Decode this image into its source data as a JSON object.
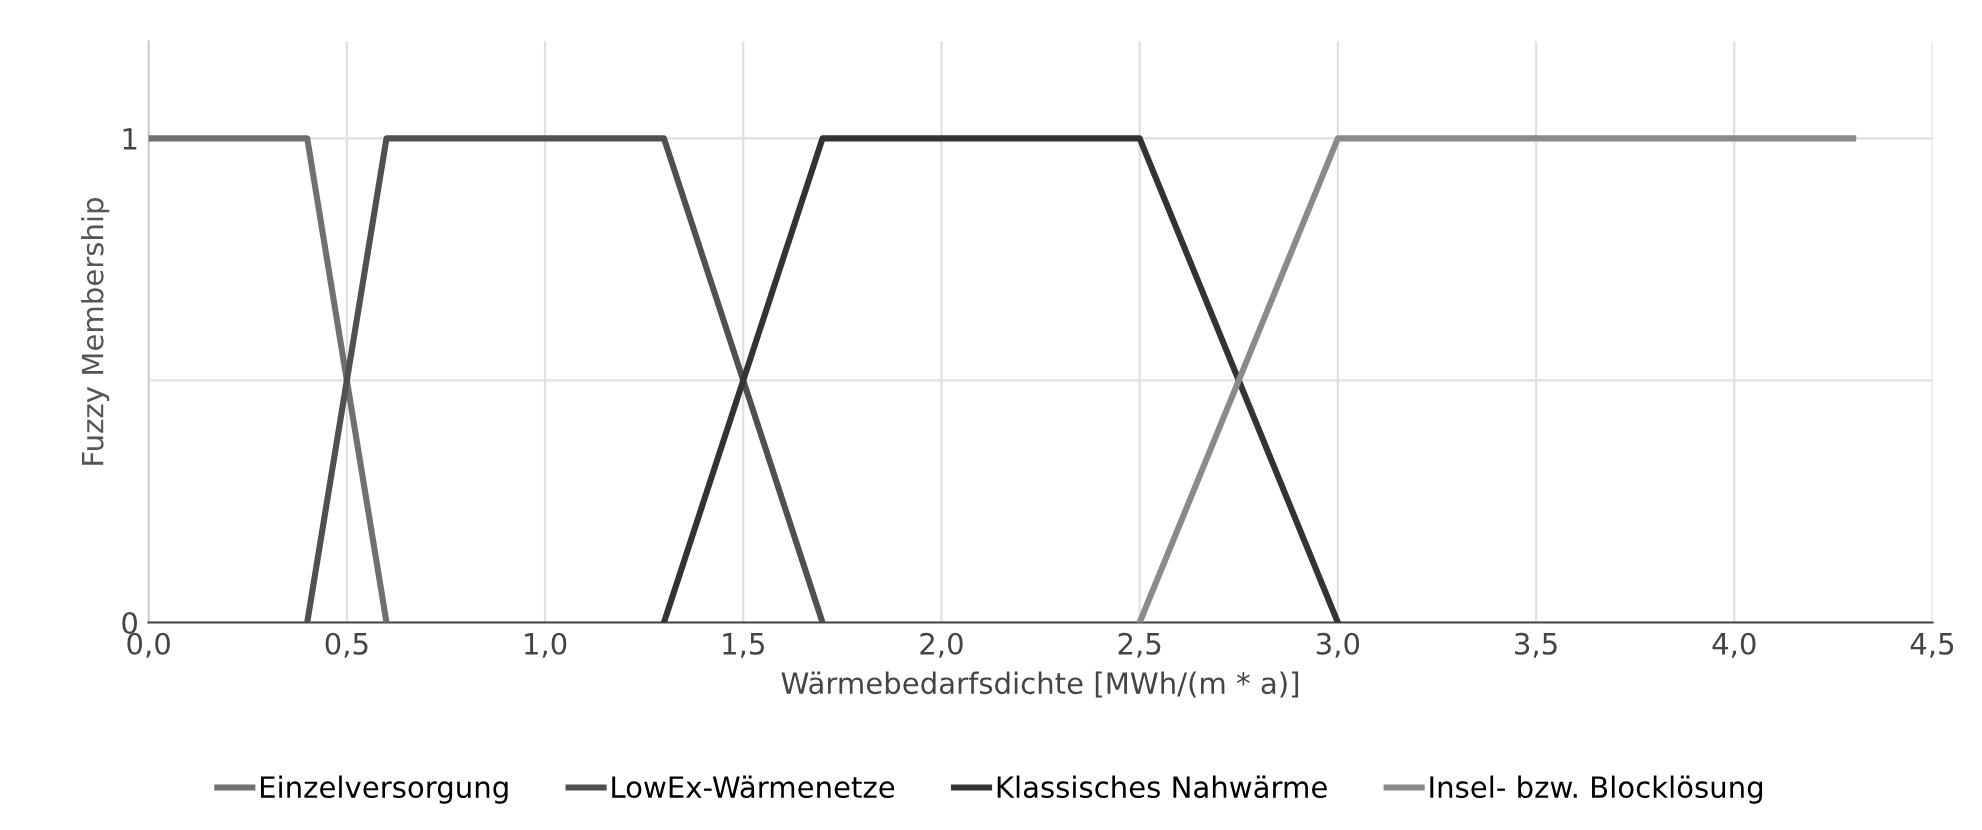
{
  "chart_data": {
    "type": "line",
    "xlabel": "Wärmebedarfsdichte [MWh/(m * a)]",
    "ylabel": "Fuzzy Membership",
    "series": [
      {
        "name": "Einzelversorgung",
        "color": "#707070",
        "x": [
          0,
          0.4,
          0.6
        ],
        "values": [
          1,
          1,
          0
        ]
      },
      {
        "name": "LowEx-Wärmenetze",
        "color": "#505050",
        "x": [
          0.4,
          0.6,
          1.3,
          1.7
        ],
        "values": [
          0,
          1,
          1,
          0
        ]
      },
      {
        "name": "Klassisches Nahwärme",
        "color": "#333333",
        "x": [
          1.3,
          1.7,
          2.5,
          3.0
        ],
        "values": [
          0,
          1,
          1,
          0
        ]
      },
      {
        "name": "Insel- bzw. Blocklösung",
        "color": "#8a8a8a",
        "x": [
          2.5,
          3.0,
          4.3
        ],
        "values": [
          0,
          1,
          1
        ]
      }
    ],
    "xlim": [
      0,
      4.5
    ],
    "xticks": [
      {
        "value": 0,
        "label": "0,0"
      },
      {
        "value": 0.5,
        "label": "0,5"
      },
      {
        "value": 1,
        "label": "1,0"
      },
      {
        "value": 1.5,
        "label": "1,5"
      },
      {
        "value": 2,
        "label": "2,0"
      },
      {
        "value": 2.5,
        "label": "2,5"
      },
      {
        "value": 3,
        "label": "3,0"
      },
      {
        "value": 3.5,
        "label": "3,5"
      },
      {
        "value": 4,
        "label": "4,0"
      },
      {
        "value": 4.5,
        "label": "4,5"
      }
    ],
    "ylim": [
      0,
      1.2
    ],
    "yticks": [
      0,
      {
        "value": 0.5,
        "label": null
      },
      1
    ],
    "grid": true,
    "legend": "bottom",
    "marker": "none",
    "line_style": "solid"
  }
}
